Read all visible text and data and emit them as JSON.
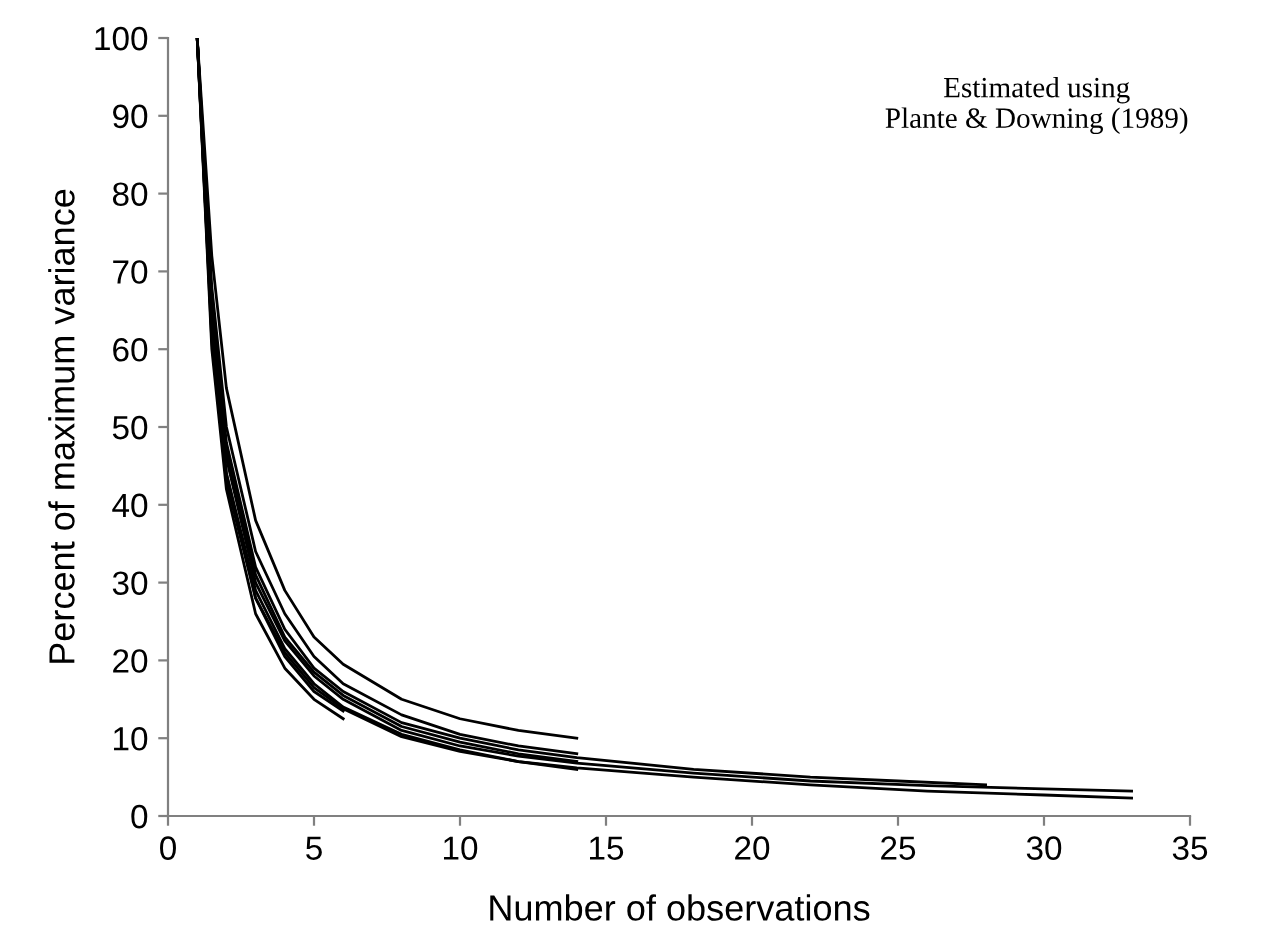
{
  "chart_data": {
    "type": "line",
    "xlabel": "Number of observations",
    "ylabel": "Percent of maximum variance",
    "annotations": [
      "Estimated using\nPlante & Downing (1989)"
    ],
    "xlim": [
      0,
      35
    ],
    "xticks": [
      0,
      5,
      10,
      15,
      20,
      25,
      30,
      35
    ],
    "ylim": [
      0,
      100
    ],
    "yticks": [
      0,
      10,
      20,
      30,
      40,
      50,
      60,
      70,
      80,
      90,
      100
    ],
    "grid": false,
    "legend": false,
    "marker": "none",
    "line_style": "solid",
    "series": [
      {
        "color": "#000000",
        "x": [
          1,
          1.5,
          2,
          3,
          4,
          5,
          6,
          8,
          10,
          12,
          14
        ],
        "values": [
          100,
          72,
          55,
          38,
          29,
          23,
          19.5,
          15,
          12.5,
          11,
          10
        ]
      },
      {
        "color": "#000000",
        "x": [
          1,
          1.5,
          2,
          3,
          4,
          5,
          6,
          8,
          10,
          12,
          14
        ],
        "values": [
          100,
          68,
          50,
          34,
          26,
          20.5,
          17,
          13,
          10.5,
          9,
          8
        ]
      },
      {
        "color": "#000000",
        "x": [
          1,
          1.5,
          2,
          3,
          4,
          5,
          6,
          8,
          10,
          12,
          14
        ],
        "values": [
          100,
          65,
          47,
          31,
          23,
          18.5,
          15.5,
          11.5,
          9.5,
          8,
          7
        ]
      },
      {
        "color": "#000000",
        "x": [
          1,
          1.5,
          2,
          3,
          4,
          5,
          6,
          8,
          10,
          12,
          14
        ],
        "values": [
          100,
          62,
          44,
          29,
          21.5,
          17,
          14,
          10.5,
          8.5,
          7,
          6
        ]
      },
      {
        "color": "#000000",
        "x": [
          1,
          1.5,
          2,
          3,
          4,
          5,
          6
        ],
        "values": [
          100,
          60,
          42,
          26,
          19,
          15,
          12.5
        ]
      },
      {
        "color": "#000000",
        "x": [
          1,
          1.5,
          2,
          3,
          4,
          5,
          6
        ],
        "values": [
          100,
          62,
          44,
          28,
          20.5,
          16,
          13.5
        ]
      },
      {
        "color": "#000000",
        "x": [
          1,
          1.5,
          2,
          3,
          4,
          5,
          6,
          8,
          10,
          12,
          14,
          18,
          22,
          25,
          28
        ],
        "values": [
          100,
          66,
          48,
          32,
          24,
          19,
          16,
          12,
          10,
          8.5,
          7.5,
          6,
          5,
          4.5,
          4
        ]
      },
      {
        "color": "#000000",
        "x": [
          1,
          1.5,
          2,
          3,
          4,
          5,
          6,
          8,
          10,
          12,
          14,
          18,
          22,
          26,
          30,
          33
        ],
        "values": [
          100,
          64,
          46,
          30,
          22.5,
          18,
          15,
          11,
          9,
          7.7,
          6.8,
          5.5,
          4.5,
          3.9,
          3.5,
          3.2
        ]
      },
      {
        "color": "#000000",
        "x": [
          1,
          1.5,
          2,
          3,
          4,
          5,
          6,
          8,
          10,
          12,
          14,
          18,
          22,
          26,
          30,
          33
        ],
        "values": [
          100,
          61,
          43,
          28,
          21,
          16.5,
          13.8,
          10.2,
          8.3,
          7,
          6.2,
          5,
          4,
          3.2,
          2.7,
          2.3
        ]
      }
    ]
  }
}
